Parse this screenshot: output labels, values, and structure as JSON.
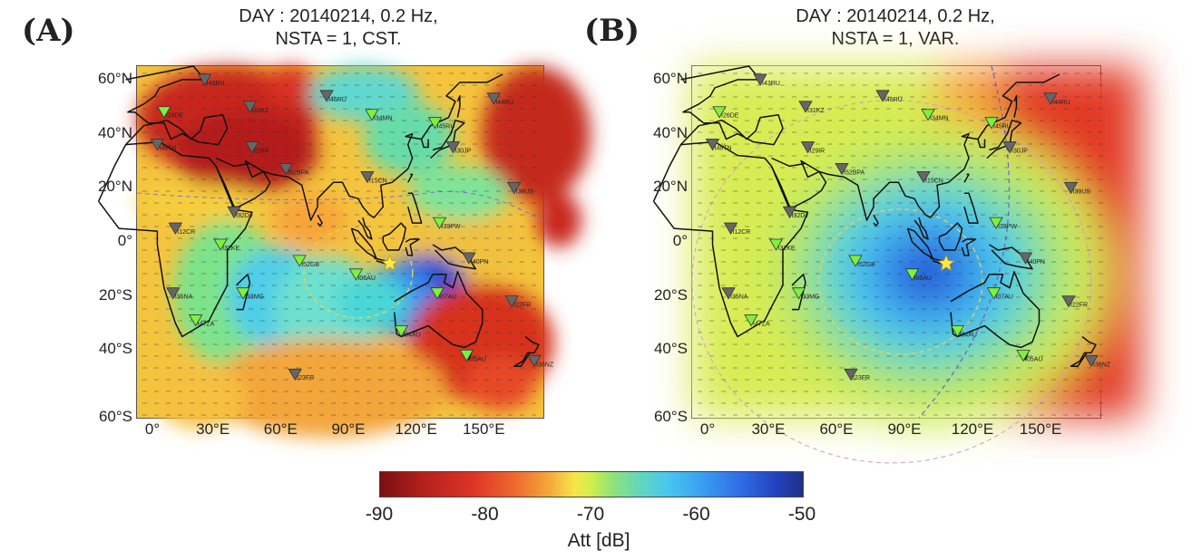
{
  "panels": [
    {
      "letter": "(A)",
      "title_line1": "DAY : 20140214, 0.2 Hz,",
      "title_line2": "NSTA = 1, CST."
    },
    {
      "letter": "(B)",
      "title_line1": "DAY : 20140214, 0.2 Hz,",
      "title_line2": "NSTA = 1, VAR."
    }
  ],
  "lat_labels": [
    "60°N",
    "40°N",
    "20°N",
    "0°",
    "20°S",
    "40°S",
    "60°S"
  ],
  "lon_labels": [
    "0°",
    "30°E",
    "60°E",
    "90°E",
    "120°E",
    "150°E"
  ],
  "stations": [
    {
      "code": "I43RU",
      "lon": 30,
      "lat": 60,
      "marker": "gray"
    },
    {
      "code": "I26DE",
      "lon": 12,
      "lat": 48,
      "marker": "green"
    },
    {
      "code": "I31KZ",
      "lon": 50,
      "lat": 50,
      "marker": "gray"
    },
    {
      "code": "I46RU",
      "lon": 84,
      "lat": 54,
      "marker": "gray"
    },
    {
      "code": "I34MN",
      "lon": 104,
      "lat": 47,
      "marker": "green"
    },
    {
      "code": "I44RU",
      "lon": 158,
      "lat": 53,
      "marker": "gray"
    },
    {
      "code": "I45RU",
      "lon": 132,
      "lat": 44,
      "marker": "green"
    },
    {
      "code": "I48TN",
      "lon": 9,
      "lat": 36,
      "marker": "gray"
    },
    {
      "code": "I29IR",
      "lon": 51,
      "lat": 35,
      "marker": "gray"
    },
    {
      "code": "I30JP",
      "lon": 140,
      "lat": 35,
      "marker": "gray"
    },
    {
      "code": "I52BPA",
      "lon": 66,
      "lat": 27,
      "marker": "gray"
    },
    {
      "code": "I15CN",
      "lon": 102,
      "lat": 24,
      "marker": "gray"
    },
    {
      "code": "I39US",
      "lon": 167,
      "lat": 20,
      "marker": "gray"
    },
    {
      "code": "I32DJ",
      "lon": 43,
      "lat": 11,
      "marker": "gray"
    },
    {
      "code": "I39PW",
      "lon": 134,
      "lat": 7,
      "marker": "green"
    },
    {
      "code": "I12CR",
      "lon": 17,
      "lat": 5,
      "marker": "gray"
    },
    {
      "code": "I32KE",
      "lon": 37,
      "lat": -1,
      "marker": "green"
    },
    {
      "code": "I52GB",
      "lon": 72,
      "lat": -7,
      "marker": "green"
    },
    {
      "code": "I06AU",
      "lon": 97,
      "lat": -12,
      "marker": "green"
    },
    {
      "code": "I40PN",
      "lon": 147,
      "lat": -6,
      "marker": "gray"
    },
    {
      "code": "I07AU",
      "lon": 133,
      "lat": -19,
      "marker": "green"
    },
    {
      "code": "I22FR",
      "lon": 166,
      "lat": -22,
      "marker": "gray"
    },
    {
      "code": "I35NA",
      "lon": 16,
      "lat": -19,
      "marker": "gray"
    },
    {
      "code": "I33MG",
      "lon": 47,
      "lat": -19,
      "marker": "green"
    },
    {
      "code": "I47ZA",
      "lon": 26,
      "lat": -29,
      "marker": "green"
    },
    {
      "code": "I04AU",
      "lon": 117,
      "lat": -33,
      "marker": "green"
    },
    {
      "code": "I05AU",
      "lon": 146,
      "lat": -42,
      "marker": "green"
    },
    {
      "code": "I36NZ",
      "lon": 176,
      "lat": -44,
      "marker": "gray"
    },
    {
      "code": "I23FR",
      "lon": 70,
      "lat": -49,
      "marker": "gray"
    }
  ],
  "source": {
    "lon": 112,
    "lat": -8
  },
  "colorbar": {
    "ticks": [
      "-90",
      "-80",
      "-70",
      "-60",
      "-50"
    ],
    "range": [
      -90,
      -50
    ],
    "label": "Att [dB]"
  }
}
